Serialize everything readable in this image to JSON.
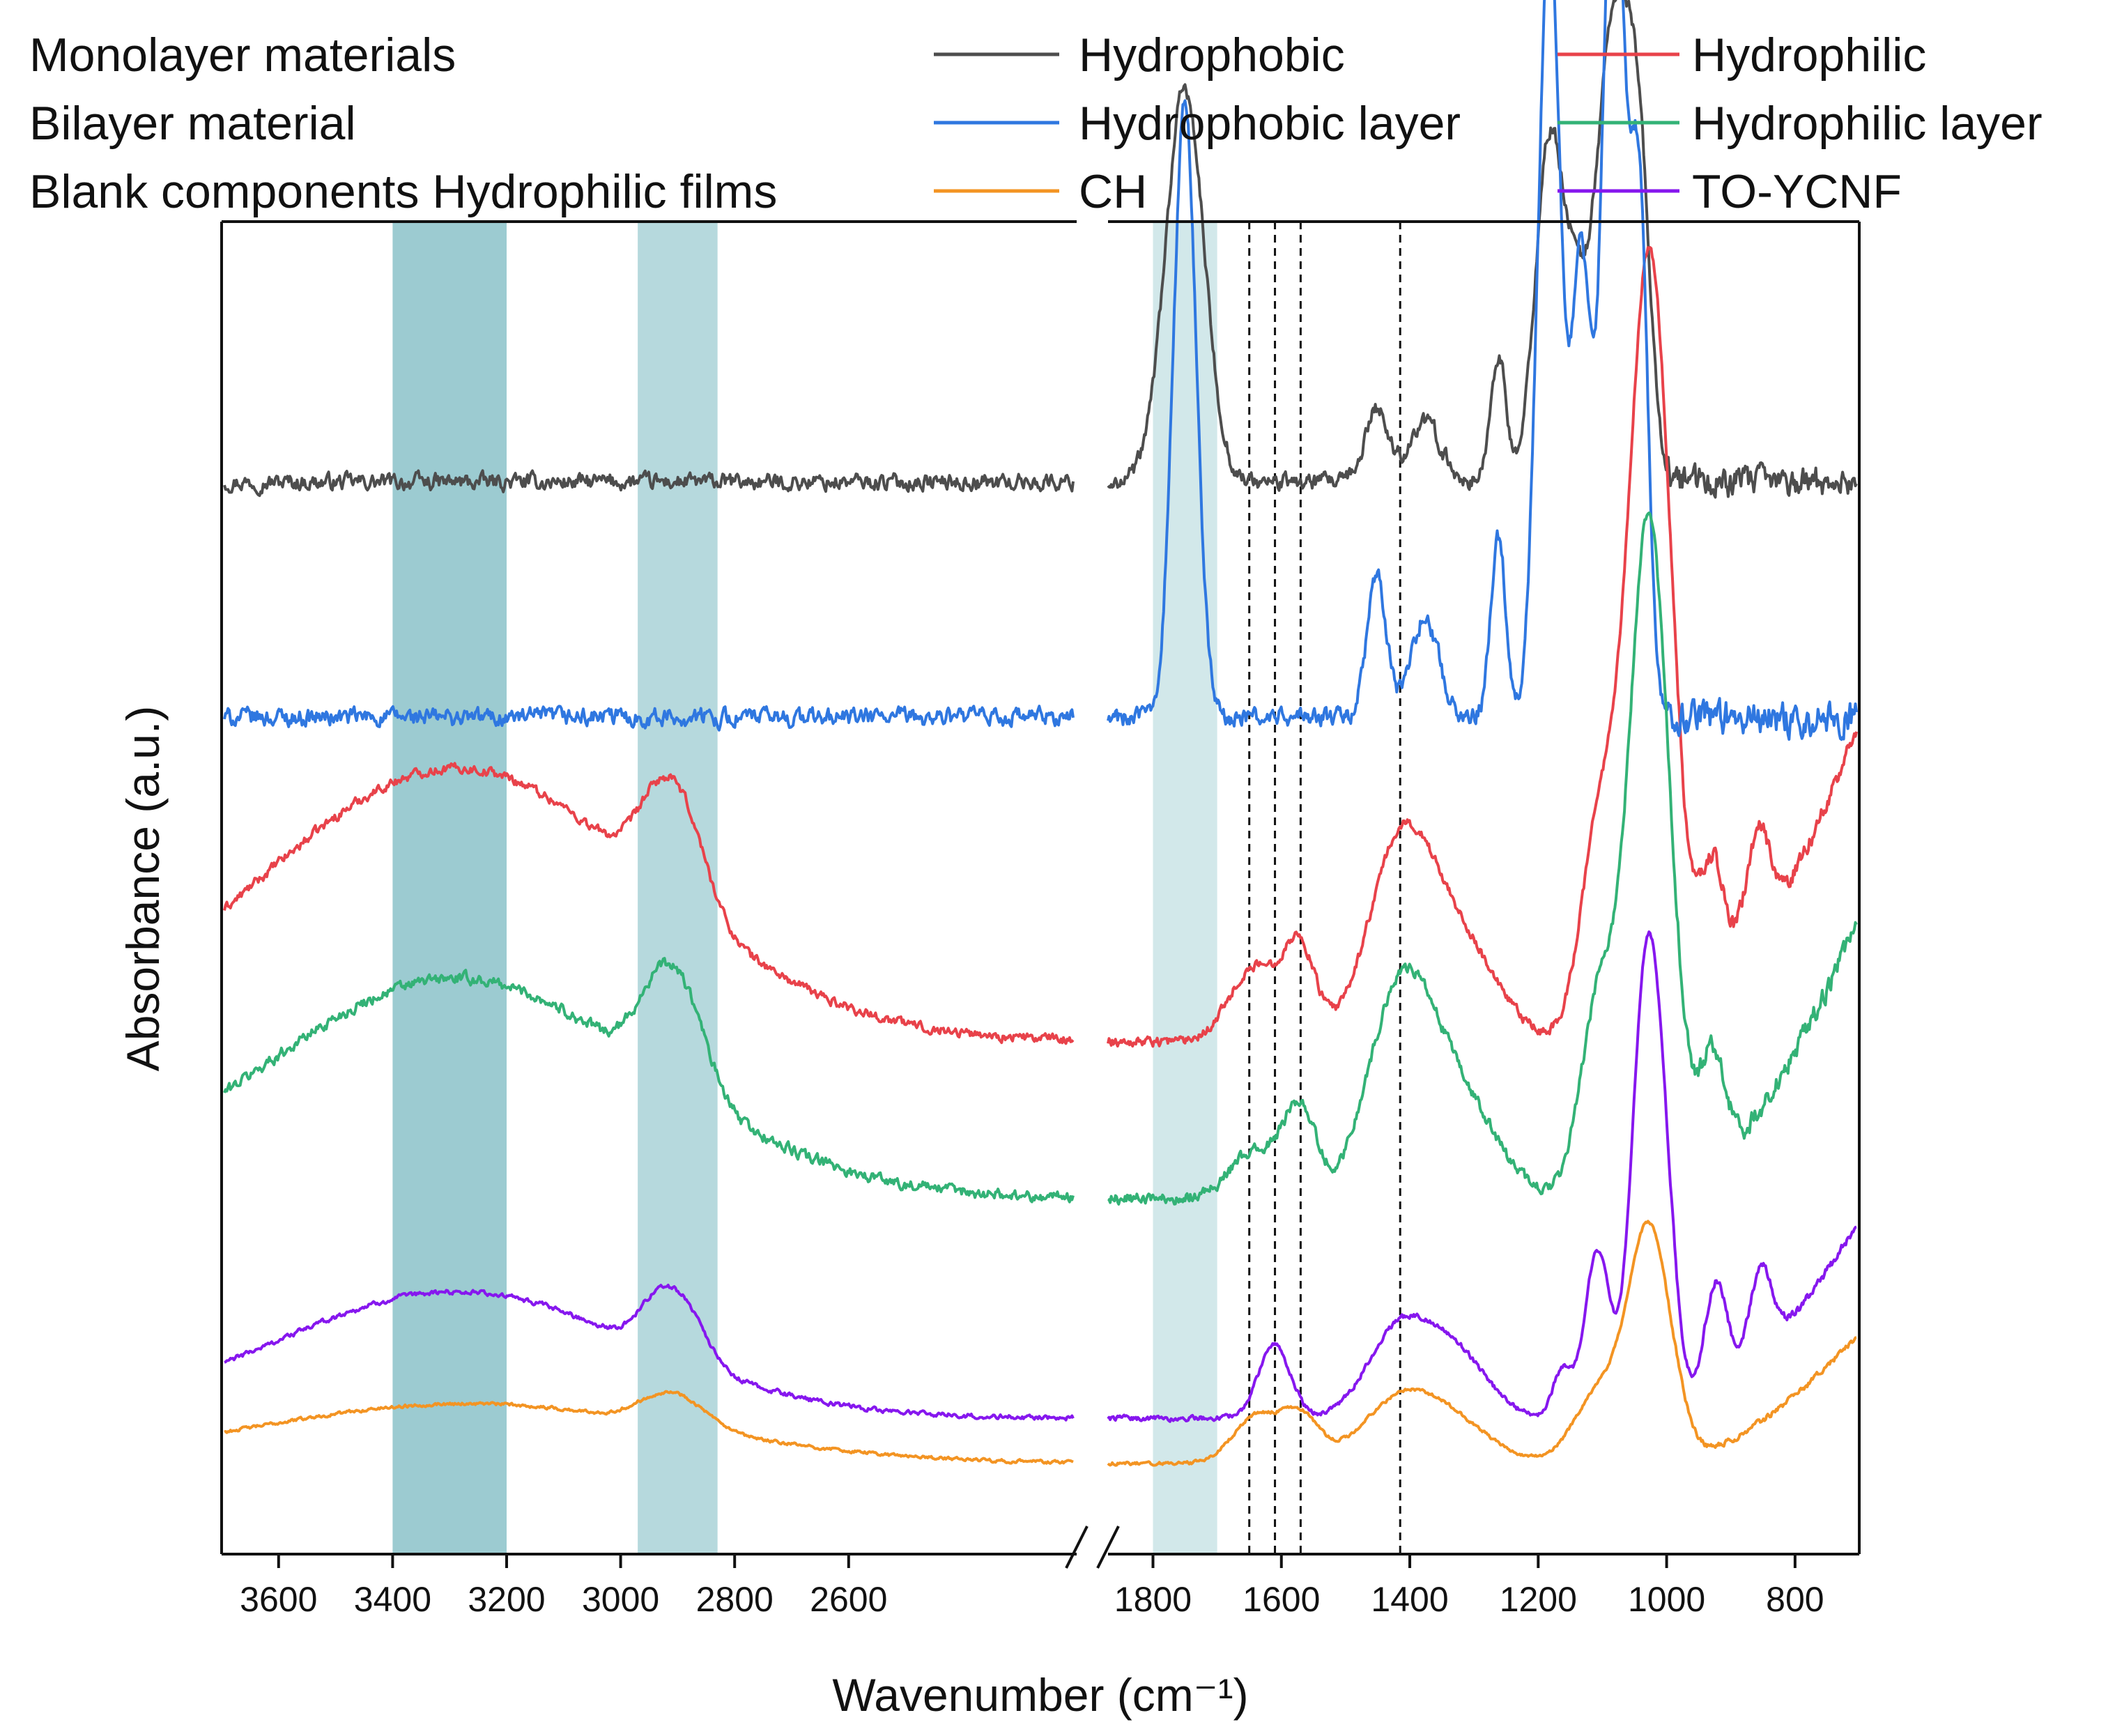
{
  "chart_data": {
    "type": "line",
    "title": "",
    "xlabel": "Wavenumber (cm⁻¹)",
    "ylabel": "Absorbance (a.u.)",
    "x_reversed": true,
    "x_segments": [
      {
        "range": [
          3700,
          2200
        ],
        "ticks": [
          3600,
          3400,
          3200,
          3000,
          2800,
          2600
        ]
      },
      {
        "range": [
          1870,
          700
        ],
        "ticks": [
          1800,
          1600,
          1400,
          1200,
          1000,
          800
        ]
      }
    ],
    "axis_break": true,
    "y_ticks_shown": false,
    "legend": {
      "placement": "top",
      "group_labels": [
        "Monolayer materials",
        "Bilayer material",
        "Blank components Hydrophilic films"
      ],
      "entries": [
        {
          "label": "Hydrophobic",
          "series": 0
        },
        {
          "label": "Hydrophilic",
          "series": 1
        },
        {
          "label": "Hydrophobic layer",
          "series": 2
        },
        {
          "label": "Hydrophilic layer",
          "series": 3
        },
        {
          "label": "CH",
          "series": 4
        },
        {
          "label": "TO-YCNF",
          "series": 5
        }
      ]
    },
    "highlight_bands": [
      {
        "x": [
          3400,
          3200
        ],
        "color": "#9ccbd1"
      },
      {
        "x": [
          2970,
          2830
        ],
        "color": "#b6d9dd"
      },
      {
        "x": [
          1800,
          1700
        ],
        "color": "#d2e8ea"
      }
    ],
    "reference_lines": [
      1650,
      1610,
      1570,
      1415
    ],
    "series": [
      {
        "name": "Hydrophobic",
        "color": "#4d4d4d",
        "baseline": 0.8045,
        "noise": 0.01,
        "peaks": [
          [
            1750,
            0.295,
            30
          ],
          [
            1450,
            0.055,
            18
          ],
          [
            1375,
            0.045,
            25
          ],
          [
            1260,
            0.095,
            12
          ],
          [
            1180,
            0.255,
            22
          ],
          [
            1140,
            0.095,
            18
          ],
          [
            1080,
            0.345,
            28
          ],
          [
            1040,
            0.175,
            18
          ]
        ],
        "rise_low_end": 0.0
      },
      {
        "name": "Hydrophilic",
        "color": "#e8424a",
        "baseline": 0.385,
        "noise": 0.006,
        "peaks": [
          [
            3290,
            0.205,
            340
          ],
          [
            2935,
            0.055,
            40
          ],
          [
            2880,
            0.055,
            40
          ],
          [
            1640,
            0.055,
            40
          ],
          [
            1570,
            0.065,
            25
          ],
          [
            1415,
            0.135,
            50
          ],
          [
            1325,
            0.075,
            60
          ],
          [
            1100,
            0.165,
            30
          ],
          [
            1030,
            0.465,
            30
          ],
          [
            1000,
            0.185,
            30
          ],
          [
            925,
            0.105,
            20
          ],
          [
            855,
            0.085,
            20
          ]
        ],
        "rise_low_end": 0.235
      },
      {
        "name": "Hydrophobic layer",
        "color": "#2f77e0",
        "baseline": 0.628,
        "noise": 0.011,
        "peaks": [
          [
            1750,
            0.46,
            18
          ],
          [
            1450,
            0.105,
            15
          ],
          [
            1375,
            0.075,
            22
          ],
          [
            1260,
            0.135,
            12
          ],
          [
            1180,
            0.585,
            18
          ],
          [
            1130,
            0.335,
            15
          ],
          [
            1080,
            0.685,
            17
          ],
          [
            1040,
            0.385,
            14
          ]
        ],
        "rise_low_end": 0.0
      },
      {
        "name": "Hydrophilic layer",
        "color": "#33b276",
        "baseline": 0.267,
        "noise": 0.007,
        "peaks": [
          [
            3290,
            0.165,
            340
          ],
          [
            2935,
            0.055,
            40
          ],
          [
            2880,
            0.055,
            40
          ],
          [
            1640,
            0.035,
            40
          ],
          [
            1570,
            0.065,
            25
          ],
          [
            1415,
            0.145,
            50
          ],
          [
            1325,
            0.075,
            60
          ],
          [
            1100,
            0.155,
            30
          ],
          [
            1030,
            0.405,
            28
          ],
          [
            1000,
            0.155,
            30
          ],
          [
            925,
            0.085,
            20
          ]
        ],
        "rise_low_end": 0.205
      },
      {
        "name": "CH",
        "color": "#f39423",
        "baseline": 0.068,
        "noise": 0.002,
        "peaks": [
          [
            3270,
            0.045,
            380
          ],
          [
            2935,
            0.015,
            45
          ],
          [
            2880,
            0.015,
            45
          ],
          [
            1640,
            0.035,
            35
          ],
          [
            1570,
            0.035,
            30
          ],
          [
            1415,
            0.045,
            60
          ],
          [
            1325,
            0.025,
            60
          ],
          [
            1100,
            0.055,
            40
          ],
          [
            1030,
            0.135,
            30
          ],
          [
            1000,
            0.055,
            30
          ]
        ],
        "rise_low_end": 0.095
      },
      {
        "name": "TO-YCNF",
        "color": "#8617ee",
        "baseline": 0.102,
        "noise": 0.003,
        "peaks": [
          [
            3290,
            0.095,
            320
          ],
          [
            2935,
            0.035,
            35
          ],
          [
            2880,
            0.035,
            35
          ],
          [
            1610,
            0.055,
            25
          ],
          [
            1415,
            0.065,
            50
          ],
          [
            1325,
            0.045,
            50
          ],
          [
            1160,
            0.035,
            15
          ],
          [
            1105,
            0.125,
            20
          ],
          [
            1030,
            0.315,
            22
          ],
          [
            1000,
            0.125,
            20
          ],
          [
            920,
            0.085,
            18
          ],
          [
            850,
            0.065,
            18
          ]
        ],
        "rise_low_end": 0.145
      }
    ]
  }
}
